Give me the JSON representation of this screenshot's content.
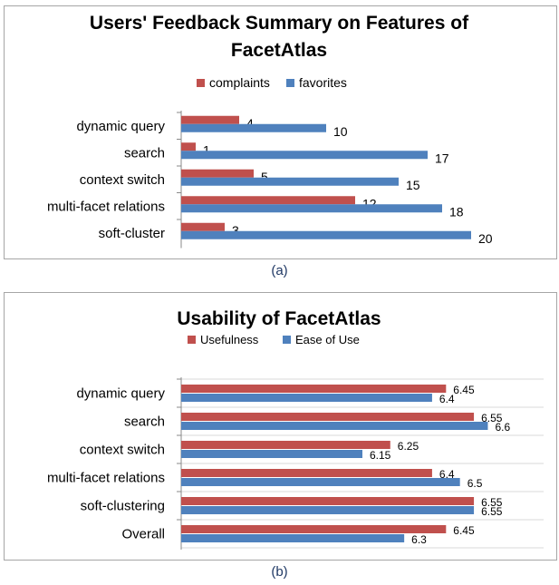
{
  "colors": {
    "series1": "#c0504d",
    "series2": "#4f81bd",
    "grid": "#d9d9d9"
  },
  "chart_data": [
    {
      "type": "bar",
      "orientation": "horizontal",
      "title": "Users' Feedback Summary on Features of FacetAtlas",
      "title_lines": [
        "Users' Feedback Summary on Features of",
        "FacetAtlas"
      ],
      "categories": [
        "dynamic query",
        "search",
        "context switch",
        "multi-facet relations",
        "soft-cluster"
      ],
      "series": [
        {
          "name": "complaints",
          "values": [
            4,
            1,
            5,
            12,
            3
          ]
        },
        {
          "name": "favorites",
          "values": [
            10,
            17,
            15,
            18,
            20
          ]
        }
      ],
      "xlim": [
        0,
        22
      ],
      "legend_position": "top",
      "data_labels": true,
      "caption": "(a)"
    },
    {
      "type": "bar",
      "orientation": "horizontal",
      "title": "Usability of FacetAtlas",
      "title_lines": [
        "Usability of FacetAtlas"
      ],
      "categories": [
        "dynamic query",
        "search",
        "context switch",
        "multi-facet relations",
        "soft-clustering",
        "Overall"
      ],
      "series": [
        {
          "name": "Usefulness",
          "values": [
            6.45,
            6.55,
            6.25,
            6.4,
            6.55,
            6.45
          ]
        },
        {
          "name": "Ease of Use",
          "values": [
            6.4,
            6.6,
            6.15,
            6.5,
            6.55,
            6.3
          ]
        }
      ],
      "xlim": [
        5.5,
        6.8
      ],
      "gridlines": "horizontal",
      "legend_position": "top",
      "data_labels": true,
      "caption": "(b)"
    }
  ]
}
